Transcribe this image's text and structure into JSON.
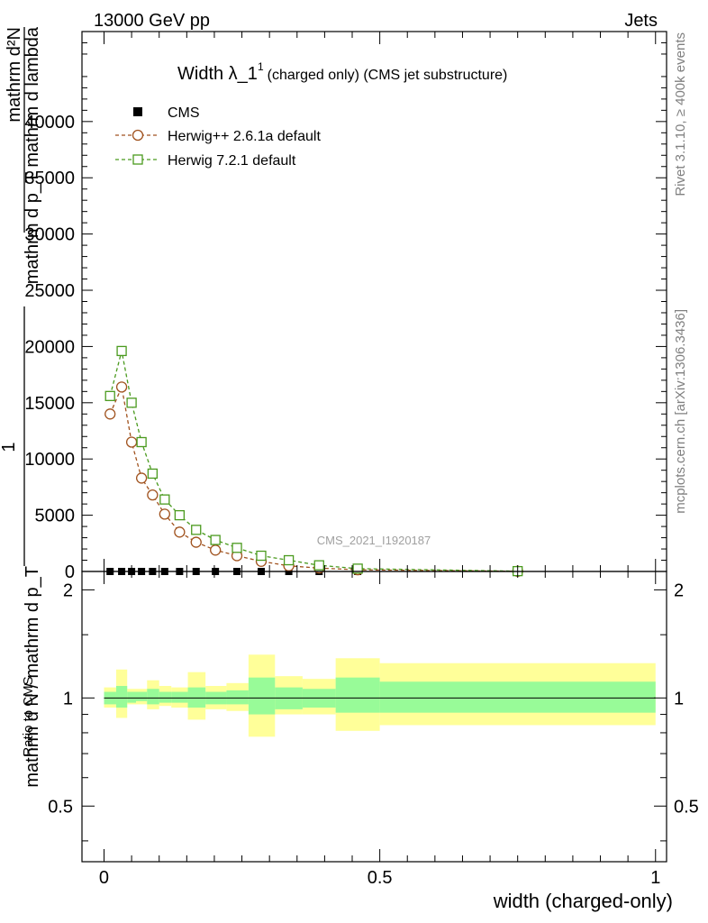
{
  "header": {
    "left": "13000 GeV pp",
    "right": "Jets"
  },
  "side_text": {
    "rivet": "Rivet 3.1.10, ≥ 400k events",
    "mcplots": "mcplots.cern.ch [arXiv:1306.3436]"
  },
  "chart_data": [
    {
      "type": "scatter",
      "panel": "main",
      "title_main": "Width λ_1",
      "title_sup": "1",
      "title_sub": "(charged only) (CMS jet substructure)",
      "watermark": "CMS_2021_I1920187",
      "ylabel": "1 / mathrm d N mathrm d N / mathrm d p_T mathrm d lambda",
      "ylabel_lines": [
        "mathrm d²N",
        "mathrm d p_T mathrm d lambda",
        "1",
        "mathrm d N / mathrm d p_T"
      ],
      "ylim": [
        0,
        48000
      ],
      "xlim": [
        -0.04,
        1.02
      ],
      "yticks": [
        0,
        5000,
        10000,
        15000,
        20000,
        25000,
        30000,
        35000,
        40000
      ],
      "ytick_labels": [
        "0",
        "5000",
        "10000",
        "15000",
        "20000",
        "25000",
        "30000",
        "35000",
        "40000"
      ],
      "legend": {
        "position": "top-left",
        "entries": [
          "CMS",
          "Herwig++ 2.6.1a default",
          "Herwig 7.2.1 default"
        ]
      },
      "series": [
        {
          "name": "CMS",
          "color": "#000000",
          "marker": "filled-square",
          "x": [
            0.011,
            0.032,
            0.05,
            0.068,
            0.088,
            0.11,
            0.137,
            0.167,
            0.202,
            0.241,
            0.285,
            0.335,
            0.39,
            0.46,
            0.75
          ],
          "y": [
            0,
            0,
            0,
            0,
            0,
            0,
            0,
            0,
            0,
            0,
            0,
            0,
            0,
            0,
            0
          ]
        },
        {
          "name": "Herwig++ 2.6.1a default",
          "color": "#a0521e",
          "marker": "open-circle",
          "x": [
            0.011,
            0.032,
            0.05,
            0.068,
            0.088,
            0.11,
            0.137,
            0.167,
            0.202,
            0.241,
            0.285,
            0.335,
            0.39,
            0.46,
            0.75
          ],
          "y": [
            14000,
            16400,
            11500,
            8300,
            6800,
            5100,
            3500,
            2600,
            1900,
            1400,
            900,
            500,
            300,
            150,
            20
          ]
        },
        {
          "name": "Herwig 7.2.1 default",
          "color": "#4a9a1e",
          "marker": "open-square",
          "x": [
            0.011,
            0.032,
            0.05,
            0.068,
            0.088,
            0.11,
            0.137,
            0.167,
            0.202,
            0.241,
            0.285,
            0.335,
            0.39,
            0.46,
            0.75
          ],
          "y": [
            15600,
            19600,
            15000,
            11500,
            8700,
            6400,
            5000,
            3700,
            2800,
            2100,
            1400,
            1000,
            550,
            250,
            30
          ]
        }
      ]
    },
    {
      "type": "area",
      "panel": "ratio",
      "ylabel": "Ratio to CMS",
      "xlabel": "width (charged-only)",
      "ylim": [
        0.35,
        2.25
      ],
      "yscale": "log",
      "xlim": [
        -0.04,
        1.02
      ],
      "xticks": [
        0,
        0.5,
        1
      ],
      "xtick_labels": [
        "0",
        "0.5",
        "1"
      ],
      "yticks": [
        0.5,
        1,
        2
      ],
      "ytick_labels": [
        "0.5",
        "1",
        "2"
      ],
      "reference_line": 1,
      "bins": [
        {
          "x0": 0.0,
          "x1": 0.022,
          "inner": [
            0.96,
            1.04
          ],
          "outer": [
            0.94,
            1.07
          ]
        },
        {
          "x0": 0.022,
          "x1": 0.042,
          "inner": [
            0.94,
            1.08
          ],
          "outer": [
            0.88,
            1.2
          ]
        },
        {
          "x0": 0.042,
          "x1": 0.058,
          "inner": [
            0.97,
            1.04
          ],
          "outer": [
            0.96,
            1.06
          ]
        },
        {
          "x0": 0.058,
          "x1": 0.078,
          "inner": [
            0.98,
            1.04
          ],
          "outer": [
            0.96,
            1.06
          ]
        },
        {
          "x0": 0.078,
          "x1": 0.1,
          "inner": [
            0.96,
            1.06
          ],
          "outer": [
            0.93,
            1.12
          ]
        },
        {
          "x0": 0.1,
          "x1": 0.122,
          "inner": [
            0.97,
            1.04
          ],
          "outer": [
            0.95,
            1.08
          ]
        },
        {
          "x0": 0.122,
          "x1": 0.152,
          "inner": [
            0.97,
            1.04
          ],
          "outer": [
            0.94,
            1.07
          ]
        },
        {
          "x0": 0.152,
          "x1": 0.184,
          "inner": [
            0.94,
            1.07
          ],
          "outer": [
            0.87,
            1.18
          ]
        },
        {
          "x0": 0.184,
          "x1": 0.222,
          "inner": [
            0.96,
            1.04
          ],
          "outer": [
            0.93,
            1.08
          ]
        },
        {
          "x0": 0.222,
          "x1": 0.262,
          "inner": [
            0.96,
            1.05
          ],
          "outer": [
            0.92,
            1.1
          ]
        },
        {
          "x0": 0.262,
          "x1": 0.31,
          "inner": [
            0.9,
            1.14
          ],
          "outer": [
            0.78,
            1.32
          ]
        },
        {
          "x0": 0.31,
          "x1": 0.36,
          "inner": [
            0.93,
            1.07
          ],
          "outer": [
            0.9,
            1.15
          ]
        },
        {
          "x0": 0.36,
          "x1": 0.42,
          "inner": [
            0.94,
            1.06
          ],
          "outer": [
            0.9,
            1.13
          ]
        },
        {
          "x0": 0.42,
          "x1": 0.5,
          "inner": [
            0.91,
            1.14
          ],
          "outer": [
            0.81,
            1.29
          ]
        },
        {
          "x0": 0.5,
          "x1": 1.0,
          "inner": [
            0.91,
            1.11
          ],
          "outer": [
            0.84,
            1.25
          ]
        }
      ]
    }
  ]
}
